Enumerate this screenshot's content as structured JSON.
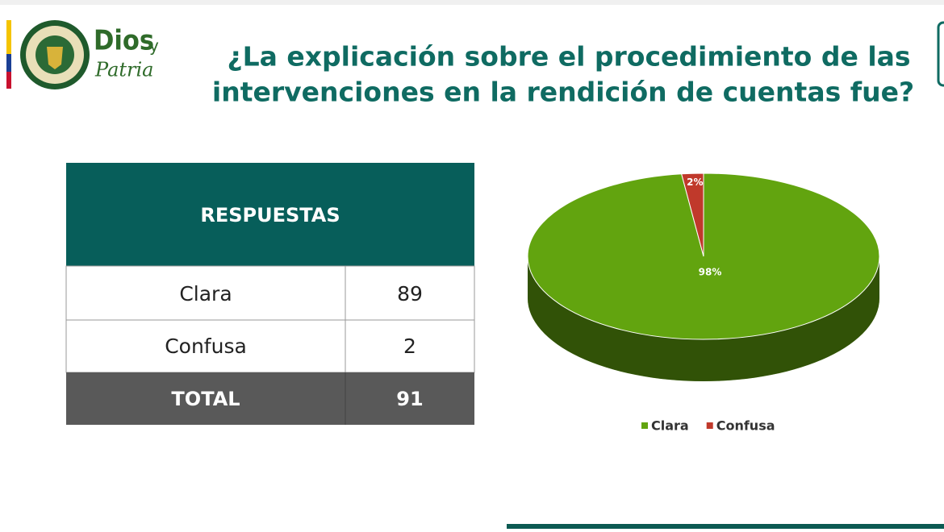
{
  "header": {
    "logo_word": "Dios",
    "logo_y": "y",
    "logo_script": "Patria"
  },
  "title": [
    "¿La explicación sobre el procedimiento de las",
    "intervenciones en la rendición de cuentas fue?"
  ],
  "table": {
    "header": "RESPUESTAS",
    "rows": [
      [
        "Clara",
        89
      ],
      [
        "Confusa",
        2
      ]
    ],
    "total": [
      "TOTAL",
      91
    ]
  },
  "chart_data": {
    "type": "pie",
    "categories": [
      "Clara",
      "Confusa"
    ],
    "values": [
      98,
      2
    ],
    "value_labels": [
      "98%",
      "2%"
    ],
    "colors": [
      "#62a40f",
      "#c0392b"
    ],
    "legend": "bottom"
  }
}
